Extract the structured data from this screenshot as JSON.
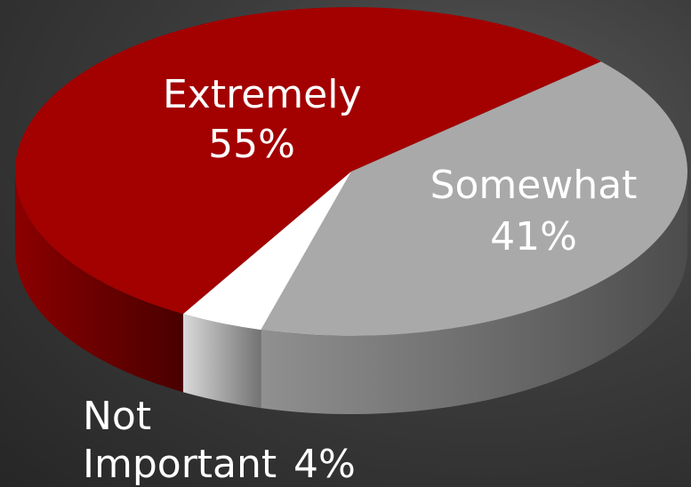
{
  "chart_data": {
    "type": "pie3d",
    "categories": [
      "Extremely",
      "Somewhat",
      "Not Important"
    ],
    "values": [
      55,
      41,
      4
    ],
    "value_labels": [
      "55%",
      "41%",
      "4%"
    ],
    "colors": [
      "#a30000",
      "#a9a9a9",
      "#ffffff"
    ]
  }
}
